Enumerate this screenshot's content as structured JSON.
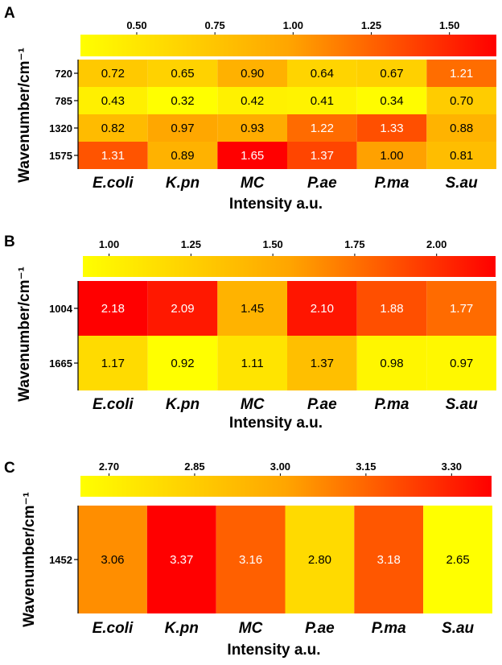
{
  "chart_data": [
    {
      "panel": "A",
      "type": "heatmap",
      "xlabel": "Intensity a.u.",
      "ylabel": "Wavenumber/cm⁻¹",
      "categories": [
        "E.coli",
        "K.pn",
        "MC",
        "P.ae",
        "P.ma",
        "S.au"
      ],
      "rows": [
        "720",
        "785",
        "1320",
        "1575"
      ],
      "values": [
        [
          0.72,
          0.65,
          0.9,
          0.64,
          0.67,
          1.21
        ],
        [
          0.43,
          0.32,
          0.42,
          0.41,
          0.34,
          0.7
        ],
        [
          0.82,
          0.97,
          0.93,
          1.22,
          1.33,
          0.88
        ],
        [
          1.31,
          0.89,
          1.65,
          1.37,
          1.0,
          0.81
        ]
      ],
      "labels": [
        [
          "0.72",
          "0.65",
          "0.90",
          "0.64",
          "0.67",
          "1.21"
        ],
        [
          "0.43",
          "0.32",
          "0.42",
          "0.41",
          "0.34",
          "0.70"
        ],
        [
          "0.82",
          "0.97",
          "0.93",
          "1.22",
          "1.33",
          "0.88"
        ],
        [
          "1.31",
          "0.89",
          "1.65",
          "1.37",
          "1.00",
          "0.81"
        ]
      ],
      "colorbar": {
        "min": 0.32,
        "max": 1.65,
        "ticks": [
          0.5,
          0.75,
          1.0,
          1.25,
          1.5
        ],
        "tick_labels": [
          "0.50",
          "0.75",
          "1.00",
          "1.25",
          "1.50"
        ]
      }
    },
    {
      "panel": "B",
      "type": "heatmap",
      "xlabel": "Intensity a.u.",
      "ylabel": "Wavenumber/cm⁻¹",
      "categories": [
        "E.coli",
        "K.pn",
        "MC",
        "P.ae",
        "P.ma",
        "S.au"
      ],
      "rows": [
        "1004",
        "1665"
      ],
      "values": [
        [
          2.18,
          2.09,
          1.45,
          2.1,
          1.88,
          1.77
        ],
        [
          1.17,
          0.92,
          1.11,
          1.37,
          0.98,
          0.97
        ]
      ],
      "labels": [
        [
          "2.18",
          "2.09",
          "1.45",
          "2.10",
          "1.88",
          "1.77"
        ],
        [
          "1.17",
          "0.92",
          "1.11",
          "1.37",
          "0.98",
          "0.97"
        ]
      ],
      "colorbar": {
        "min": 0.92,
        "max": 2.18,
        "ticks": [
          1.0,
          1.25,
          1.5,
          1.75,
          2.0
        ],
        "tick_labels": [
          "1.00",
          "1.25",
          "1.50",
          "1.75",
          "2.00"
        ]
      }
    },
    {
      "panel": "C",
      "type": "heatmap",
      "xlabel": "Intensity a.u.",
      "ylabel": "Wavenumber/cm⁻¹",
      "categories": [
        "E.coli",
        "K.pn",
        "MC",
        "P.ae",
        "P.ma",
        "S.au"
      ],
      "rows": [
        "1452"
      ],
      "values": [
        [
          3.06,
          3.37,
          3.16,
          2.8,
          3.18,
          2.65
        ]
      ],
      "labels": [
        [
          "3.06",
          "3.37",
          "3.16",
          "2.80",
          "3.18",
          "2.65"
        ]
      ],
      "colorbar": {
        "min": 2.65,
        "max": 3.37,
        "ticks": [
          2.7,
          2.85,
          3.0,
          3.15,
          3.3
        ],
        "tick_labels": [
          "2.70",
          "2.85",
          "3.00",
          "3.15",
          "3.30"
        ]
      }
    }
  ]
}
